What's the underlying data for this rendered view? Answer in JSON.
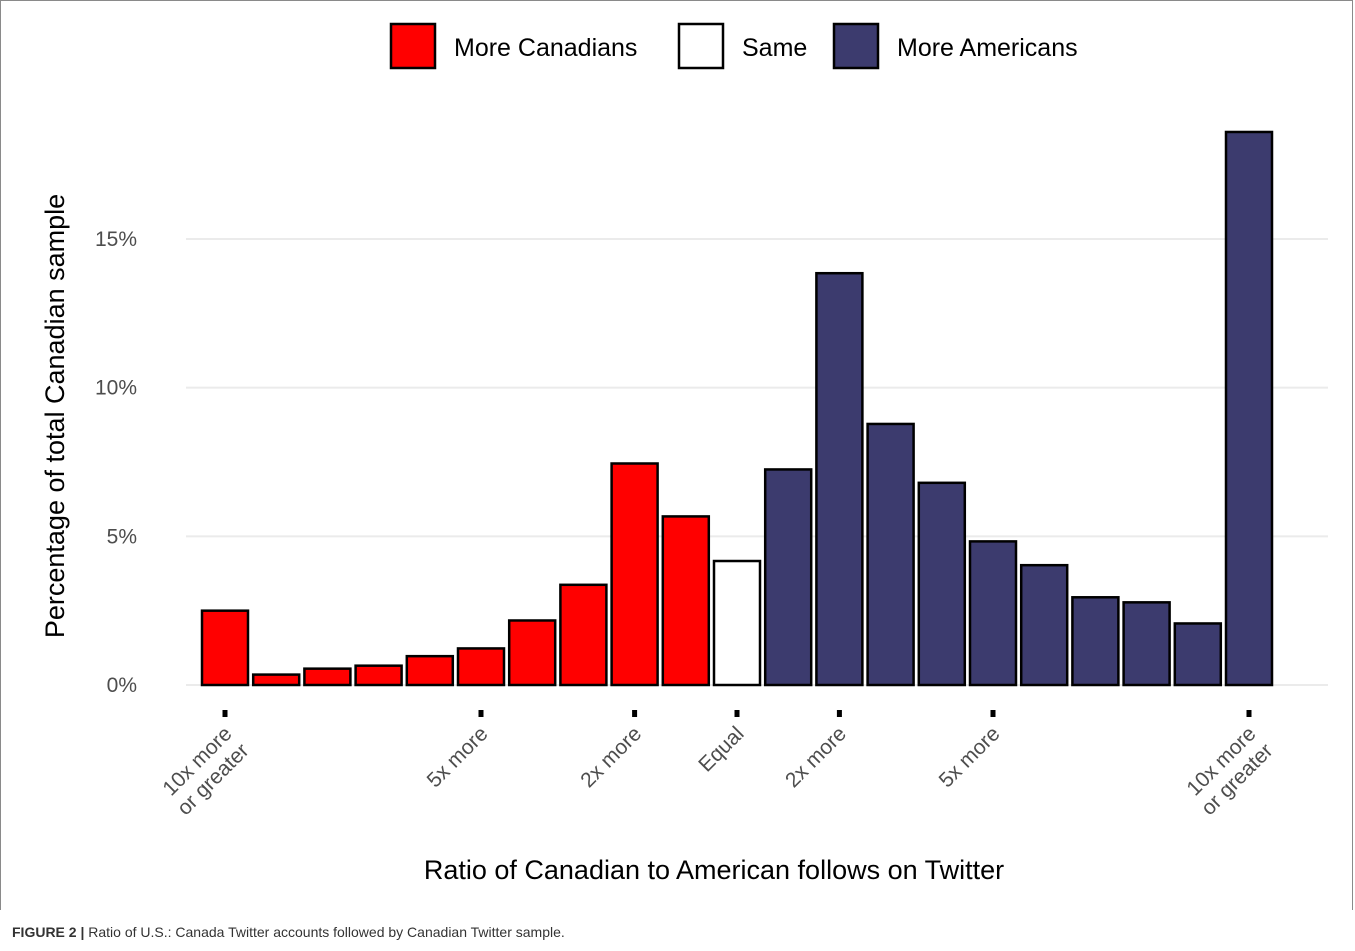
{
  "chart_data": {
    "type": "bar",
    "xlabel": "Ratio of Canadian to American follows on Twitter",
    "ylabel": "Percentage of total Canadian sample",
    "ylim": [
      0,
      18.7
    ],
    "yticks": [
      0,
      5,
      10,
      15
    ],
    "ytick_labels": [
      "0%",
      "5%",
      "10%",
      "15%"
    ],
    "grid": "horizontal",
    "legend_position": "top",
    "legend": [
      {
        "name": "More Canadians",
        "color": "#ff0000"
      },
      {
        "name": "Same",
        "color": "#ffffff"
      },
      {
        "name": "More Americans",
        "color": "#3c3b6e"
      }
    ],
    "bars": [
      {
        "value": 2.5,
        "group": 0
      },
      {
        "value": 0.35,
        "group": 0
      },
      {
        "value": 0.55,
        "group": 0
      },
      {
        "value": 0.65,
        "group": 0
      },
      {
        "value": 0.97,
        "group": 0
      },
      {
        "value": 1.23,
        "group": 0
      },
      {
        "value": 2.17,
        "group": 0
      },
      {
        "value": 3.37,
        "group": 0
      },
      {
        "value": 7.45,
        "group": 0
      },
      {
        "value": 5.67,
        "group": 0
      },
      {
        "value": 4.17,
        "group": 1
      },
      {
        "value": 7.25,
        "group": 2
      },
      {
        "value": 13.85,
        "group": 2
      },
      {
        "value": 8.78,
        "group": 2
      },
      {
        "value": 6.8,
        "group": 2
      },
      {
        "value": 4.83,
        "group": 2
      },
      {
        "value": 4.03,
        "group": 2
      },
      {
        "value": 2.95,
        "group": 2
      },
      {
        "value": 2.78,
        "group": 2
      },
      {
        "value": 2.07,
        "group": 2
      },
      {
        "value": 18.6,
        "group": 2
      }
    ],
    "x_tick_labels": [
      {
        "index": 0,
        "lines": [
          "10x more",
          "or greater"
        ]
      },
      {
        "index": 5,
        "lines": [
          "5x more"
        ]
      },
      {
        "index": 8,
        "lines": [
          "2x more"
        ]
      },
      {
        "index": 10,
        "lines": [
          "Equal"
        ]
      },
      {
        "index": 12,
        "lines": [
          "2x more"
        ]
      },
      {
        "index": 15,
        "lines": [
          "5x more"
        ]
      },
      {
        "index": 20,
        "lines": [
          "10x more",
          "or greater"
        ]
      }
    ]
  },
  "caption": {
    "label": "FIGURE 2 |",
    "text": " Ratio of U.S.: Canada Twitter accounts followed by Canadian Twitter sample."
  }
}
